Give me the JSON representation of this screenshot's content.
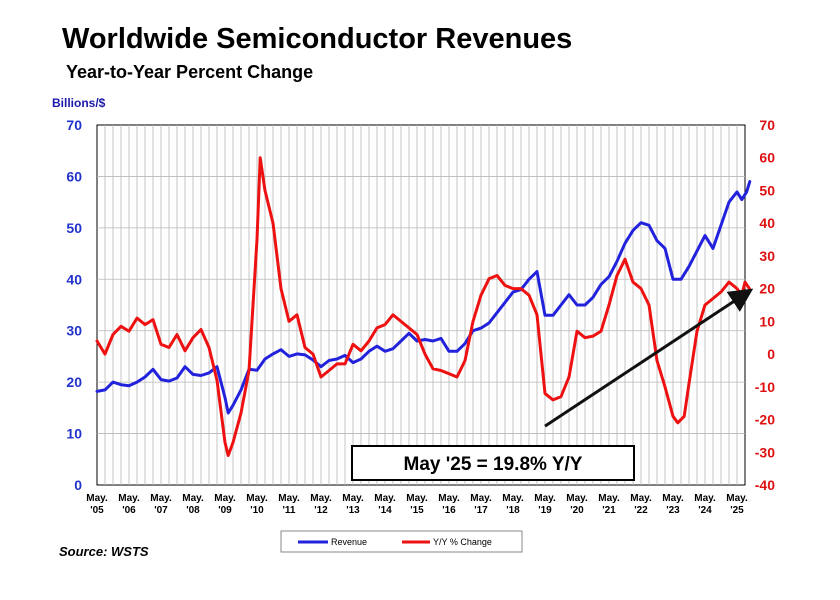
{
  "chart_data": {
    "type": "line",
    "title": "Worldwide Semiconductor Revenues",
    "subtitle": "Year-to-Year Percent Change",
    "left_axis_label": "Billions/$",
    "left_ylim": [
      0,
      70
    ],
    "left_ticks": [
      "0",
      "10",
      "20",
      "30",
      "40",
      "50",
      "60",
      "70"
    ],
    "right_ylim": [
      -40,
      70
    ],
    "right_ticks": [
      "-40",
      "-30",
      "-20",
      "-10",
      "0",
      "10",
      "20",
      "30",
      "40",
      "50",
      "60",
      "70"
    ],
    "x_categories": [
      [
        "May.",
        "'05"
      ],
      [
        "May.",
        "'06"
      ],
      [
        "May.",
        "'07"
      ],
      [
        "May.",
        "'08"
      ],
      [
        "May.",
        "'09"
      ],
      [
        "May.",
        "'10"
      ],
      [
        "May.",
        "'11"
      ],
      [
        "May.",
        "'12"
      ],
      [
        "May.",
        "'13"
      ],
      [
        "May.",
        "'14"
      ],
      [
        "May.",
        "'15"
      ],
      [
        "May.",
        "'16"
      ],
      [
        "May.",
        "'17"
      ],
      [
        "May.",
        "'18"
      ],
      [
        "May.",
        "'19"
      ],
      [
        "May.",
        "'20"
      ],
      [
        "May.",
        "'21"
      ],
      [
        "May.",
        "'22"
      ],
      [
        "May.",
        "'23"
      ],
      [
        "May.",
        "'24"
      ],
      [
        "May.",
        "'25"
      ]
    ],
    "x_range": [
      2005.0,
      2025.0
    ],
    "grid": true,
    "legend_position": "bottom-center",
    "series": [
      {
        "name": "Revenue",
        "axis": "left",
        "color": "#2222dd",
        "points": [
          [
            2005.0,
            18.2
          ],
          [
            2005.25,
            18.5
          ],
          [
            2005.5,
            20.0
          ],
          [
            2005.75,
            19.5
          ],
          [
            2006.0,
            19.3
          ],
          [
            2006.25,
            20.0
          ],
          [
            2006.5,
            21.0
          ],
          [
            2006.75,
            22.5
          ],
          [
            2007.0,
            20.5
          ],
          [
            2007.25,
            20.2
          ],
          [
            2007.5,
            20.8
          ],
          [
            2007.75,
            23.0
          ],
          [
            2008.0,
            21.5
          ],
          [
            2008.25,
            21.3
          ],
          [
            2008.5,
            21.8
          ],
          [
            2008.75,
            23.0
          ],
          [
            2009.0,
            17.0
          ],
          [
            2009.1,
            14.0
          ],
          [
            2009.25,
            15.5
          ],
          [
            2009.5,
            18.5
          ],
          [
            2009.75,
            22.5
          ],
          [
            2010.0,
            22.3
          ],
          [
            2010.25,
            24.5
          ],
          [
            2010.5,
            25.5
          ],
          [
            2010.75,
            26.3
          ],
          [
            2011.0,
            25.0
          ],
          [
            2011.25,
            25.5
          ],
          [
            2011.5,
            25.3
          ],
          [
            2011.75,
            24.3
          ],
          [
            2012.0,
            23.0
          ],
          [
            2012.25,
            24.2
          ],
          [
            2012.5,
            24.5
          ],
          [
            2012.75,
            25.2
          ],
          [
            2013.0,
            23.8
          ],
          [
            2013.25,
            24.5
          ],
          [
            2013.5,
            26.0
          ],
          [
            2013.75,
            27.0
          ],
          [
            2014.0,
            26.0
          ],
          [
            2014.25,
            26.5
          ],
          [
            2014.5,
            28.0
          ],
          [
            2014.75,
            29.5
          ],
          [
            2015.0,
            28.0
          ],
          [
            2015.25,
            28.3
          ],
          [
            2015.5,
            28.0
          ],
          [
            2015.75,
            28.5
          ],
          [
            2016.0,
            26.0
          ],
          [
            2016.25,
            26.0
          ],
          [
            2016.5,
            27.5
          ],
          [
            2016.75,
            30.0
          ],
          [
            2017.0,
            30.5
          ],
          [
            2017.25,
            31.5
          ],
          [
            2017.5,
            33.5
          ],
          [
            2017.75,
            35.5
          ],
          [
            2018.0,
            37.5
          ],
          [
            2018.25,
            38.0
          ],
          [
            2018.5,
            40.0
          ],
          [
            2018.75,
            41.5
          ],
          [
            2019.0,
            33.0
          ],
          [
            2019.25,
            33.0
          ],
          [
            2019.5,
            35.0
          ],
          [
            2019.75,
            37.0
          ],
          [
            2020.0,
            35.0
          ],
          [
            2020.25,
            35.0
          ],
          [
            2020.5,
            36.5
          ],
          [
            2020.75,
            39.0
          ],
          [
            2021.0,
            40.5
          ],
          [
            2021.25,
            43.5
          ],
          [
            2021.5,
            47.0
          ],
          [
            2021.75,
            49.5
          ],
          [
            2022.0,
            51.0
          ],
          [
            2022.25,
            50.5
          ],
          [
            2022.5,
            47.5
          ],
          [
            2022.75,
            46.0
          ],
          [
            2023.0,
            40.0
          ],
          [
            2023.25,
            40.0
          ],
          [
            2023.5,
            42.5
          ],
          [
            2023.75,
            45.5
          ],
          [
            2024.0,
            48.5
          ],
          [
            2024.25,
            46.0
          ],
          [
            2024.5,
            50.5
          ],
          [
            2024.75,
            55.0
          ],
          [
            2025.0,
            57.0
          ],
          [
            2025.15,
            55.5
          ],
          [
            2025.3,
            57.0
          ],
          [
            2025.4,
            59.0
          ]
        ]
      },
      {
        "name": "Y/Y % Change",
        "axis": "right",
        "color": "#ee1111",
        "points": [
          [
            2005.0,
            4.0
          ],
          [
            2005.25,
            0.0
          ],
          [
            2005.5,
            6.0
          ],
          [
            2005.75,
            8.5
          ],
          [
            2006.0,
            7.0
          ],
          [
            2006.25,
            11.0
          ],
          [
            2006.5,
            9.0
          ],
          [
            2006.75,
            10.5
          ],
          [
            2007.0,
            3.0
          ],
          [
            2007.25,
            2.0
          ],
          [
            2007.5,
            6.0
          ],
          [
            2007.75,
            1.0
          ],
          [
            2008.0,
            5.0
          ],
          [
            2008.25,
            7.5
          ],
          [
            2008.5,
            2.0
          ],
          [
            2008.75,
            -8.0
          ],
          [
            2009.0,
            -27.0
          ],
          [
            2009.1,
            -31.0
          ],
          [
            2009.25,
            -27.0
          ],
          [
            2009.5,
            -18.0
          ],
          [
            2009.75,
            -5.0
          ],
          [
            2010.0,
            35.0
          ],
          [
            2010.1,
            60.0
          ],
          [
            2010.25,
            50.0
          ],
          [
            2010.5,
            40.0
          ],
          [
            2010.75,
            20.0
          ],
          [
            2011.0,
            10.0
          ],
          [
            2011.25,
            12.0
          ],
          [
            2011.5,
            2.0
          ],
          [
            2011.75,
            0.0
          ],
          [
            2012.0,
            -7.0
          ],
          [
            2012.25,
            -5.0
          ],
          [
            2012.5,
            -3.0
          ],
          [
            2012.75,
            -3.0
          ],
          [
            2013.0,
            3.0
          ],
          [
            2013.25,
            1.0
          ],
          [
            2013.5,
            4.0
          ],
          [
            2013.75,
            8.0
          ],
          [
            2014.0,
            9.0
          ],
          [
            2014.25,
            12.0
          ],
          [
            2014.5,
            10.0
          ],
          [
            2014.75,
            8.0
          ],
          [
            2015.0,
            6.0
          ],
          [
            2015.25,
            0.0
          ],
          [
            2015.5,
            -4.5
          ],
          [
            2015.75,
            -5.0
          ],
          [
            2016.0,
            -6.0
          ],
          [
            2016.25,
            -7.0
          ],
          [
            2016.5,
            -2.0
          ],
          [
            2016.75,
            10.0
          ],
          [
            2017.0,
            18.0
          ],
          [
            2017.25,
            23.0
          ],
          [
            2017.5,
            24.0
          ],
          [
            2017.75,
            21.0
          ],
          [
            2018.0,
            20.0
          ],
          [
            2018.25,
            20.0
          ],
          [
            2018.5,
            18.0
          ],
          [
            2018.75,
            12.0
          ],
          [
            2019.0,
            -12.0
          ],
          [
            2019.25,
            -14.0
          ],
          [
            2019.5,
            -13.0
          ],
          [
            2019.75,
            -7.0
          ],
          [
            2020.0,
            7.0
          ],
          [
            2020.25,
            5.0
          ],
          [
            2020.5,
            5.5
          ],
          [
            2020.75,
            7.0
          ],
          [
            2021.0,
            15.0
          ],
          [
            2021.25,
            24.0
          ],
          [
            2021.5,
            29.0
          ],
          [
            2021.75,
            22.0
          ],
          [
            2022.0,
            20.0
          ],
          [
            2022.25,
            15.0
          ],
          [
            2022.5,
            -2.0
          ],
          [
            2022.75,
            -10.0
          ],
          [
            2023.0,
            -19.0
          ],
          [
            2023.15,
            -21.0
          ],
          [
            2023.35,
            -19.0
          ],
          [
            2023.5,
            -9.0
          ],
          [
            2023.75,
            7.0
          ],
          [
            2024.0,
            15.0
          ],
          [
            2024.25,
            17.0
          ],
          [
            2024.5,
            19.0
          ],
          [
            2024.75,
            22.0
          ],
          [
            2025.0,
            20.0
          ],
          [
            2025.15,
            18.0
          ],
          [
            2025.25,
            22.0
          ],
          [
            2025.4,
            19.8
          ]
        ]
      }
    ],
    "trend_arrow": {
      "axis": "right",
      "from": [
        2019.0,
        -22.0
      ],
      "to": [
        2025.35,
        19.0
      ],
      "color": "#111111"
    },
    "annotation": "May '25 = 19.8% Y/Y",
    "source": "Source: WSTS"
  }
}
